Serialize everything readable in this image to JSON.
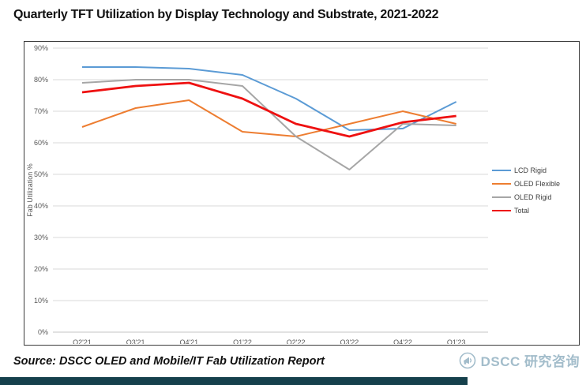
{
  "title": "Quarterly TFT Utilization by Display Technology and Substrate, 2021-2022",
  "footer": {
    "source": "Source: DSCC OLED and Mobile/IT Fab Utilization Report",
    "logo_text": "DSCC 研究咨询"
  },
  "colors": {
    "grid": "#d9d9d9",
    "axis_text": "#595959",
    "plot_border": "#3b3b3b",
    "logo": "#a3bdcb",
    "bottom_bar": "#15404c"
  },
  "chart_data": {
    "type": "line",
    "title": "Quarterly TFT Utilization by Display Technology and Substrate, 2021-2022",
    "xlabel": "",
    "ylabel": "Fab Utilization %",
    "categories": [
      "Q2'21",
      "Q3'21",
      "Q4'21",
      "Q1'22",
      "Q2'22",
      "Q3'22",
      "Q4'22",
      "Q1'23"
    ],
    "y_ticks": [
      "0%",
      "10%",
      "20%",
      "30%",
      "40%",
      "50%",
      "60%",
      "70%",
      "80%",
      "90%"
    ],
    "ylim": [
      0,
      90
    ],
    "grid": true,
    "legend_position": "right",
    "series": [
      {
        "name": "LCD Rigid",
        "color": "#5b9bd5",
        "line_width": 2,
        "values": [
          84,
          84,
          83.5,
          81.5,
          74,
          64,
          64.5,
          73
        ]
      },
      {
        "name": "OLED Flexible",
        "color": "#ed7d31",
        "line_width": 2,
        "values": [
          65,
          71,
          73.5,
          63.5,
          62,
          66,
          70,
          66
        ]
      },
      {
        "name": "OLED Rigid",
        "color": "#a6a6a6",
        "line_width": 2,
        "values": [
          79,
          80,
          80,
          78,
          62,
          51.5,
          66,
          65.5
        ]
      },
      {
        "name": "Total",
        "color": "#ee1111",
        "line_width": 2.8,
        "values": [
          76,
          78,
          79,
          74,
          66,
          62,
          66.5,
          68.5
        ]
      }
    ]
  }
}
